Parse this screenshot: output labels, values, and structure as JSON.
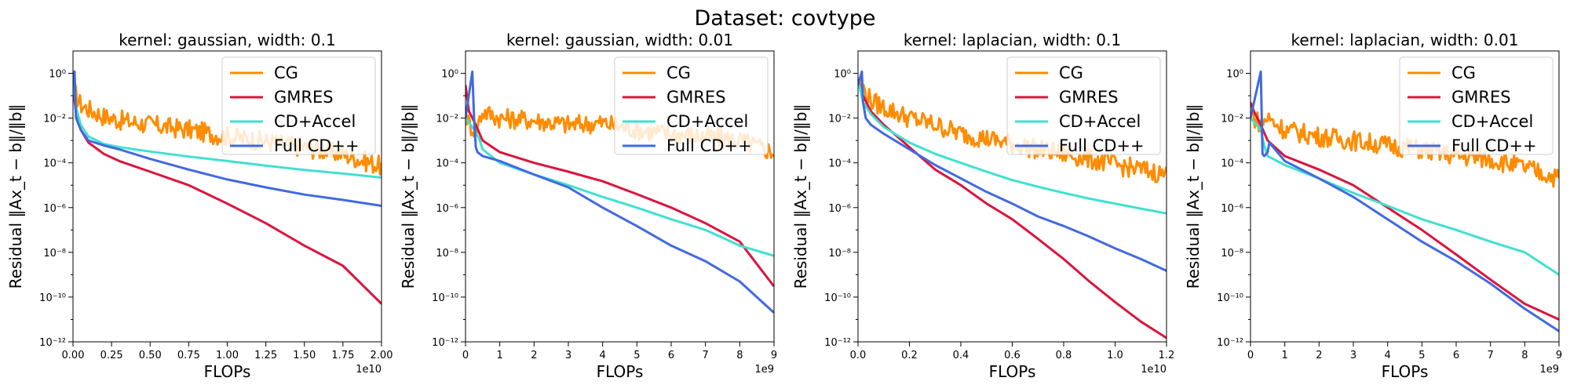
{
  "figure": {
    "suptitle": "Dataset: covtype"
  },
  "colors": {
    "CG": "#ff8c00",
    "GMRES": "#dc143c",
    "CD+Accel": "#40e0d0",
    "Full CD++": "#4169e1"
  },
  "chart_data": [
    {
      "type": "line",
      "title": "kernel: gaussian, width: 0.1",
      "xlabel": "FLOPs",
      "ylabel": "Residual ‖Ax_t − b‖/‖b‖",
      "x_multiplier": "1e10",
      "xlim": [
        0,
        2.0
      ],
      "ylim": [
        1e-12,
        10.0
      ],
      "yscale": "log",
      "xticks": [
        "0.00",
        "0.25",
        "0.50",
        "0.75",
        "1.00",
        "1.25",
        "1.50",
        "1.75",
        "2.00"
      ],
      "xtick_values": [
        0,
        0.25,
        0.5,
        0.75,
        1.0,
        1.25,
        1.5,
        1.75,
        2.0
      ],
      "legend": "top-right",
      "series": [
        {
          "name": "CG",
          "noisy": true,
          "x": [
            0,
            0.02,
            0.05,
            0.1,
            0.2,
            0.3,
            0.5,
            0.75,
            1.0,
            1.25,
            1.5,
            1.75,
            2.0
          ],
          "y": [
            0.3,
            0.1,
            0.04,
            0.025,
            0.012,
            0.008,
            0.005,
            0.003,
            0.0015,
            0.0009,
            0.0005,
            0.00025,
            7e-05
          ]
        },
        {
          "name": "GMRES",
          "x": [
            0,
            0.02,
            0.05,
            0.1,
            0.2,
            0.3,
            0.5,
            0.75,
            1.0,
            1.25,
            1.5,
            1.75,
            2.0
          ],
          "y": [
            0.2,
            0.02,
            0.003,
            0.0008,
            0.00025,
            0.00012,
            4e-05,
            1e-05,
            1.5e-06,
            2e-07,
            2e-08,
            2.5e-09,
            5e-11
          ]
        },
        {
          "name": "CD+Accel",
          "x": [
            0,
            0.02,
            0.05,
            0.1,
            0.2,
            0.3,
            0.5,
            0.75,
            1.0,
            1.25,
            1.5,
            1.75,
            2.0
          ],
          "y": [
            0.5,
            0.03,
            0.005,
            0.0015,
            0.0007,
            0.0005,
            0.00032,
            0.00019,
            0.00012,
            7.5e-05,
            4.8e-05,
            3.3e-05,
            2.2e-05
          ]
        },
        {
          "name": "Full CD++",
          "x": [
            0,
            0.01,
            0.015,
            0.02,
            0.05,
            0.1,
            0.2,
            0.3,
            0.5,
            0.75,
            1.0,
            1.25,
            1.5,
            1.75,
            2.0
          ],
          "y": [
            0.3,
            1.2,
            0.05,
            0.01,
            0.003,
            0.001,
            0.0006,
            0.0004,
            0.00015,
            5e-05,
            1.8e-05,
            8e-06,
            3.8e-06,
            2.2e-06,
            1.2e-06
          ]
        }
      ]
    },
    {
      "type": "line",
      "title": "kernel: gaussian, width: 0.01",
      "xlabel": "FLOPs",
      "ylabel": "Residual ‖Ax_t − b‖/‖b‖",
      "x_multiplier": "1e9",
      "xlim": [
        0,
        9
      ],
      "ylim": [
        1e-12,
        10.0
      ],
      "yscale": "log",
      "xticks": [
        "0",
        "1",
        "2",
        "3",
        "4",
        "5",
        "6",
        "7",
        "8",
        "9"
      ],
      "xtick_values": [
        0,
        1,
        2,
        3,
        4,
        5,
        6,
        7,
        8,
        9
      ],
      "legend": "top-right",
      "series": [
        {
          "name": "CG",
          "noisy": true,
          "x": [
            0,
            0.1,
            0.3,
            0.5,
            1,
            2,
            3,
            4,
            5,
            6,
            7,
            8,
            9
          ],
          "y": [
            0.02,
            0.005,
            0.003,
            0.02,
            0.01,
            0.008,
            0.005,
            0.006,
            0.003,
            0.002,
            0.0015,
            0.001,
            0.0003
          ]
        },
        {
          "name": "GMRES",
          "x": [
            0,
            0.1,
            0.3,
            0.5,
            1,
            2,
            3,
            4,
            5,
            6,
            7,
            8,
            9
          ],
          "y": [
            0.3,
            0.02,
            0.005,
            0.001,
            0.0003,
            0.0001,
            4e-05,
            1.5e-05,
            4e-06,
            1e-06,
            2e-07,
            3e-08,
            3e-10
          ]
        },
        {
          "name": "CD+Accel",
          "x": [
            0,
            0.2,
            0.4,
            0.5,
            1,
            2,
            3,
            4,
            5,
            6,
            7,
            8,
            9
          ],
          "y": [
            0.01,
            0.004,
            0.0012,
            0.0004,
            0.0001,
            3e-05,
            1e-05,
            3e-06,
            1e-06,
            3e-07,
            1e-07,
            2e-08,
            7e-09
          ]
        },
        {
          "name": "Full CD++",
          "x": [
            0,
            0.2,
            0.25,
            0.3,
            0.35,
            0.5,
            1,
            2,
            3,
            4,
            5,
            6,
            7,
            8,
            9
          ],
          "y": [
            0.01,
            1.2,
            0.01,
            0.0005,
            0.0003,
            0.0002,
            0.00012,
            3e-05,
            8e-06,
            1e-06,
            1.5e-07,
            2e-08,
            4e-09,
            5e-10,
            2e-11
          ]
        }
      ]
    },
    {
      "type": "line",
      "title": "kernel: laplacian, width: 0.1",
      "xlabel": "FLOPs",
      "ylabel": "Residual ‖Ax_t − b‖/‖b‖",
      "x_multiplier": "1e10",
      "xlim": [
        0,
        1.2
      ],
      "ylim": [
        1e-12,
        10.0
      ],
      "yscale": "log",
      "xticks": [
        "0.0",
        "0.2",
        "0.4",
        "0.6",
        "0.8",
        "1.0",
        "1.2"
      ],
      "xtick_values": [
        0,
        0.2,
        0.4,
        0.6,
        0.8,
        1.0,
        1.2
      ],
      "legend": "top-right",
      "series": [
        {
          "name": "CG",
          "noisy": true,
          "x": [
            0,
            0.02,
            0.05,
            0.1,
            0.2,
            0.3,
            0.4,
            0.5,
            0.6,
            0.7,
            0.8,
            0.9,
            1.0,
            1.1,
            1.2
          ],
          "y": [
            0.6,
            0.2,
            0.06,
            0.03,
            0.01,
            0.005,
            0.002,
            0.0012,
            0.0007,
            0.0004,
            0.00025,
            0.00015,
            8e-05,
            5e-05,
            3e-05
          ]
        },
        {
          "name": "GMRES",
          "x": [
            0,
            0.02,
            0.05,
            0.1,
            0.2,
            0.3,
            0.4,
            0.5,
            0.6,
            0.7,
            0.8,
            0.9,
            1.0,
            1.1,
            1.2
          ],
          "y": [
            0.5,
            0.1,
            0.02,
            0.005,
            0.0005,
            5e-05,
            1e-05,
            1.5e-06,
            3e-07,
            4e-08,
            5e-09,
            5e-10,
            6e-11,
            8e-12,
            1.5e-12
          ]
        },
        {
          "name": "CD+Accel",
          "x": [
            0,
            0.02,
            0.05,
            0.1,
            0.2,
            0.3,
            0.4,
            0.5,
            0.6,
            0.7,
            0.8,
            0.9,
            1.0,
            1.1,
            1.2
          ],
          "y": [
            0.5,
            0.05,
            0.015,
            0.004,
            0.0008,
            0.00025,
            0.0001,
            4e-05,
            1.7e-05,
            8.5e-06,
            4.5e-06,
            2.5e-06,
            1.5e-06,
            9e-07,
            5.5e-07
          ]
        },
        {
          "name": "Full CD++",
          "x": [
            0,
            0.015,
            0.02,
            0.03,
            0.05,
            0.1,
            0.2,
            0.3,
            0.4,
            0.5,
            0.6,
            0.7,
            0.8,
            0.9,
            1.0,
            1.1,
            1.2
          ],
          "y": [
            0.3,
            1.2,
            0.05,
            0.01,
            0.005,
            0.002,
            0.0004,
            8e-05,
            2e-05,
            5e-06,
            1.5e-06,
            4e-07,
            1.5e-07,
            5e-08,
            1.5e-08,
            5e-09,
            1.5e-09
          ]
        }
      ]
    },
    {
      "type": "line",
      "title": "kernel: laplacian, width: 0.01",
      "xlabel": "FLOPs",
      "ylabel": "Residual ‖Ax_t − b‖/‖b‖",
      "x_multiplier": "1e9",
      "xlim": [
        0,
        9
      ],
      "ylim": [
        1e-12,
        10.0
      ],
      "yscale": "log",
      "xticks": [
        "0",
        "1",
        "2",
        "3",
        "4",
        "5",
        "6",
        "7",
        "8",
        "9"
      ],
      "xtick_values": [
        0,
        1,
        2,
        3,
        4,
        5,
        6,
        7,
        8,
        9
      ],
      "legend": "top-right",
      "series": [
        {
          "name": "CG",
          "noisy": true,
          "x": [
            0,
            0.1,
            0.3,
            0.5,
            1,
            2,
            3,
            4,
            5,
            6,
            7,
            8,
            9
          ],
          "y": [
            0.05,
            0.01,
            0.006,
            0.01,
            0.003,
            0.0015,
            0.001,
            0.0006,
            0.0004,
            0.0002,
            0.00015,
            6e-05,
            2e-05
          ]
        },
        {
          "name": "GMRES",
          "x": [
            0,
            0.1,
            0.3,
            0.5,
            1,
            2,
            3,
            4,
            5,
            6,
            7,
            8,
            9
          ],
          "y": [
            0.05,
            0.02,
            0.005,
            0.001,
            0.0002,
            5e-05,
            1e-05,
            1e-06,
            1e-07,
            8e-09,
            6e-10,
            5e-11,
            1e-11
          ]
        },
        {
          "name": "CD+Accel",
          "x": [
            0,
            0.3,
            0.4,
            0.5,
            1,
            2,
            3,
            4,
            5,
            6,
            7,
            8,
            9
          ],
          "y": [
            0.01,
            0.003,
            0.0006,
            0.0002,
            8e-05,
            2e-05,
            4.5e-06,
            1.2e-06,
            3e-07,
            1e-07,
            3e-08,
            1e-08,
            1e-09
          ]
        },
        {
          "name": "Full CD++",
          "x": [
            0,
            0.3,
            0.35,
            0.4,
            0.5,
            0.55,
            1,
            2,
            3,
            4,
            5,
            6,
            7,
            8,
            9
          ],
          "y": [
            0.01,
            1.2,
            0.00025,
            0.0002,
            0.0003,
            0.0008,
            0.00012,
            2e-05,
            3e-06,
            3e-07,
            3e-08,
            4e-09,
            4e-10,
            3e-11,
            3e-12
          ]
        }
      ]
    }
  ]
}
